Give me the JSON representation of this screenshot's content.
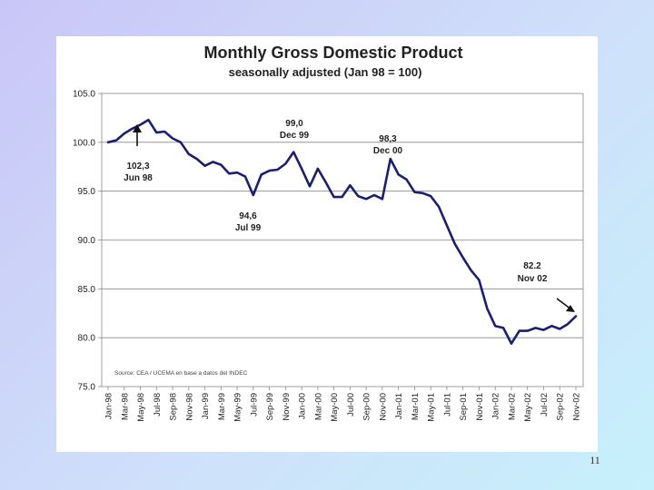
{
  "slide": {
    "page_number": "11"
  },
  "chart_data": {
    "type": "line",
    "title": "Monthly Gross Domestic Product",
    "subtitle": "seasonally adjusted (Jan 98 = 100)",
    "xlabel": "",
    "ylabel": "",
    "ylim": [
      75,
      105
    ],
    "yticks": [
      "105.0",
      "100.0",
      "95.0",
      "90.0",
      "85.0",
      "80.0",
      "75.0"
    ],
    "grid": "horizontal",
    "x_tick_labels": [
      "Jan-98",
      "Mar-98",
      "May-98",
      "Jul-98",
      "Sep-98",
      "Nov-98",
      "Jan-99",
      "Mar-99",
      "May-99",
      "Jul-99",
      "Sep-99",
      "Nov-99",
      "Jan-00",
      "Mar-00",
      "May-00",
      "Jul-00",
      "Sep-00",
      "Nov-00",
      "Jan-01",
      "Mar-01",
      "May-01",
      "Jul-01",
      "Sep-01",
      "Nov-01",
      "Jan-02",
      "Mar-02",
      "May-02",
      "Jul-02",
      "Sep-02",
      "Nov-02"
    ],
    "series": [
      {
        "name": "Monthly GDP index",
        "color": "#1a1f6e",
        "values": [
          100.0,
          100.2,
          100.9,
          101.4,
          101.8,
          102.3,
          101.0,
          101.1,
          100.4,
          100.0,
          98.8,
          98.3,
          97.6,
          98.0,
          97.7,
          96.8,
          96.9,
          96.5,
          94.6,
          96.7,
          97.1,
          97.2,
          97.8,
          99.0,
          97.3,
          95.5,
          97.3,
          95.9,
          94.4,
          94.4,
          95.6,
          94.5,
          94.2,
          94.6,
          94.2,
          98.3,
          96.7,
          96.2,
          94.9,
          94.8,
          94.5,
          93.4,
          91.5,
          89.6,
          88.2,
          86.9,
          85.9,
          83.0,
          81.2,
          81.0,
          79.4,
          80.7,
          80.7,
          81.0,
          80.8,
          81.2,
          80.9,
          81.4,
          82.2
        ]
      }
    ],
    "annotations": [
      {
        "value": "102,3",
        "label": "Jun 98"
      },
      {
        "value": "99,0",
        "label": "Dec 99"
      },
      {
        "value": "98,3",
        "label": "Dec 00"
      },
      {
        "value": "94,6",
        "label": "Jul 99"
      },
      {
        "value": "82.2",
        "label": "Nov 02"
      }
    ],
    "source_note": "Source: CEA / UCEMA en base a datos del INDEC"
  }
}
